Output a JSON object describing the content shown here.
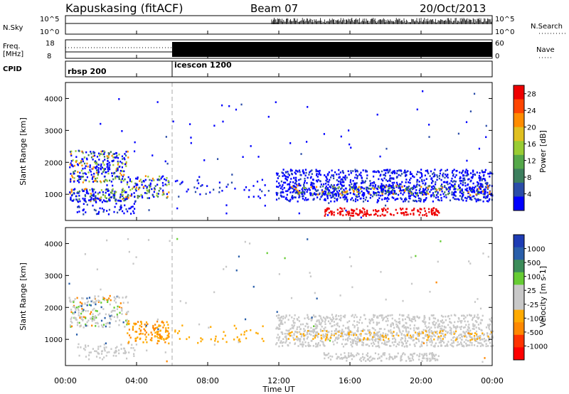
{
  "header": {
    "station": "Kapuskasing (fitACF)",
    "beam": "Beam 07",
    "date": "20/Oct/2013"
  },
  "panels": {
    "nsky_label": "N.Sky",
    "nsearch_label": "N.Search",
    "freq_label_1": "Freq.",
    "freq_label_2": "[MHz]",
    "nave_label": "Nave",
    "cpid_label": "CPID",
    "nsky_ticks": [
      "10^5",
      "10^0"
    ],
    "nsearch_ticks": [
      "10^5",
      "10^0"
    ],
    "freq_ticks": [
      "18",
      "8"
    ],
    "nave_ticks": [
      "60",
      "0"
    ]
  },
  "colors": {
    "power_scale": [
      "#0000ff",
      "#2b4da8",
      "#3d7f5e",
      "#55a84a",
      "#99cc33",
      "#e0c020",
      "#ff8c00",
      "#ff4500",
      "#ee0000"
    ],
    "velocity_scale": [
      "#ff0000",
      "#ff3300",
      "#ff8800",
      "#ffaa00",
      "#c8c8c8",
      "#c8c8c8",
      "#66cc33",
      "#3c8c5a",
      "#2a5faa",
      "#1e3cb4"
    ]
  },
  "chart_data": [
    {
      "type": "heatmap",
      "name": "power",
      "title": "",
      "xlabel": "",
      "ylabel": "Slant Range [km]",
      "xlim": [
        0,
        24
      ],
      "ylim": [
        180,
        4500
      ],
      "y_ticks": [
        "1000",
        "2000",
        "3000",
        "4000"
      ],
      "x_ticks": [
        "00:00",
        "04:00",
        "08:00",
        "12:00",
        "16:00",
        "20:00",
        "00:00"
      ],
      "colorbar": {
        "label": "Power [dB]",
        "ticks": [
          "4",
          "8",
          "12",
          "16",
          "20",
          "24",
          "28"
        ],
        "range": [
          0,
          30
        ]
      },
      "cpid_segments": [
        {
          "label": "rbsp 200",
          "start_hour": 0,
          "end_hour": 6
        },
        {
          "label": "icescon 1200",
          "start_hour": 6,
          "end_hour": 24
        }
      ]
    },
    {
      "type": "heatmap",
      "name": "velocity",
      "title": "",
      "xlabel": "Time UT",
      "ylabel": "Slant Range [km]",
      "xlim": [
        0,
        24
      ],
      "ylim": [
        180,
        4500
      ],
      "y_ticks": [
        "1000",
        "2000",
        "3000",
        "4000"
      ],
      "x_ticks": [
        "00:00",
        "04:00",
        "08:00",
        "12:00",
        "16:00",
        "20:00",
        "00:00"
      ],
      "colorbar": {
        "label": "Velocity [m s-1]",
        "ticks": [
          "1000",
          "500",
          "100",
          "25",
          "-25",
          "-100",
          "-500",
          "-1000"
        ]
      }
    }
  ]
}
